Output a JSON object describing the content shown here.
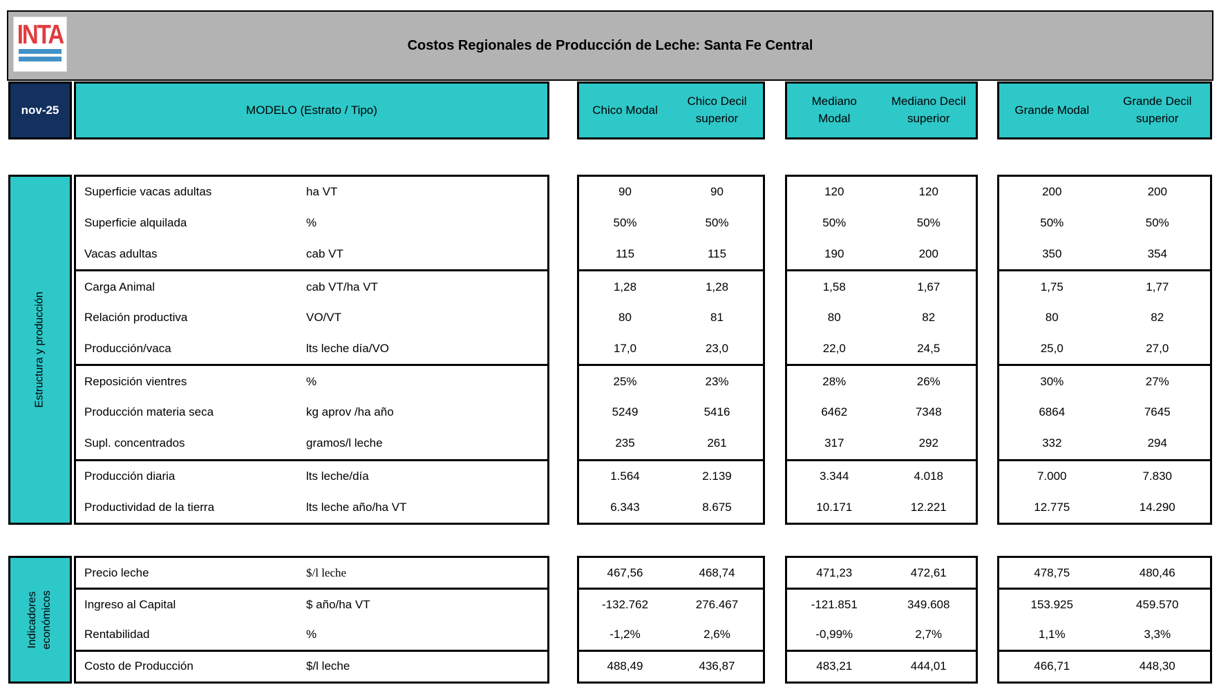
{
  "header": {
    "logo_text": "INTA",
    "title": "Costos Regionales de Producción de Leche: Santa Fe Central",
    "date": "nov-25",
    "model_label": "MODELO (Estrato / Tipo)",
    "groups": [
      {
        "cols": [
          "Chico Modal",
          "Chico Decil superior"
        ]
      },
      {
        "cols": [
          "Mediano Modal",
          "Mediano Decil superior"
        ]
      },
      {
        "cols": [
          "Grande Modal",
          "Grande Decil superior"
        ]
      }
    ]
  },
  "colors": {
    "teal": "#2ec8c9",
    "navy": "#13305f",
    "title_bar_gray": "#b3b3b3",
    "logo_red": "#e23b3f",
    "logo_blue": "#4292c8"
  },
  "table1": {
    "side_label": "Estructura y producción",
    "groups": [
      {
        "rows": [
          {
            "label": "Superficie vacas adultas",
            "unit": "ha VT",
            "values": [
              "90",
              "90",
              "120",
              "120",
              "200",
              "200"
            ]
          },
          {
            "label": "Superficie alquilada",
            "unit": "%",
            "values": [
              "50%",
              "50%",
              "50%",
              "50%",
              "50%",
              "50%"
            ]
          },
          {
            "label": "Vacas adultas",
            "unit": "cab VT",
            "values": [
              "115",
              "115",
              "190",
              "200",
              "350",
              "354"
            ]
          }
        ]
      },
      {
        "rows": [
          {
            "label": "Carga Animal",
            "unit": "cab VT/ha VT",
            "values": [
              "1,28",
              "1,28",
              "1,58",
              "1,67",
              "1,75",
              "1,77"
            ]
          },
          {
            "label": "Relación productiva",
            "unit": "VO/VT",
            "values": [
              "80",
              "81",
              "80",
              "82",
              "80",
              "82"
            ]
          },
          {
            "label": "Producción/vaca",
            "unit": "lts leche día/VO",
            "values": [
              "17,0",
              "23,0",
              "22,0",
              "24,5",
              "25,0",
              "27,0"
            ]
          }
        ]
      },
      {
        "rows": [
          {
            "label": "Reposición vientres",
            "unit": "%",
            "values": [
              "25%",
              "23%",
              "28%",
              "26%",
              "30%",
              "27%"
            ]
          },
          {
            "label": "Producción materia seca",
            "unit": "kg aprov /ha año",
            "values": [
              "5249",
              "5416",
              "6462",
              "7348",
              "6864",
              "7645"
            ]
          },
          {
            "label": "Supl. concentrados",
            "unit": "gramos/l leche",
            "values": [
              "235",
              "261",
              "317",
              "292",
              "332",
              "294"
            ]
          }
        ]
      },
      {
        "rows": [
          {
            "label": "Producción diaria",
            "unit": "lts leche/día",
            "values": [
              "1.564",
              "2.139",
              "3.344",
              "4.018",
              "7.000",
              "7.830"
            ]
          },
          {
            "label": "Productividad de la tierra",
            "unit": "lts leche año/ha VT",
            "values": [
              "6.343",
              "8.675",
              "10.171",
              "12.221",
              "12.775",
              "14.290"
            ]
          }
        ]
      }
    ]
  },
  "table2": {
    "side_label": "Indicadores económicos",
    "groups": [
      {
        "rows": [
          {
            "label": "Precio leche",
            "unit": "$/l leche",
            "values": [
              "467,56",
              "468,74",
              "471,23",
              "472,61",
              "478,75",
              "480,46"
            ]
          }
        ]
      },
      {
        "rows": [
          {
            "label": "Ingreso al Capital",
            "unit": "$ año/ha VT",
            "values": [
              "-132.762",
              "276.467",
              "-121.851",
              "349.608",
              "153.925",
              "459.570"
            ]
          },
          {
            "label": "Rentabilidad",
            "unit": "%",
            "values": [
              "-1,2%",
              "2,6%",
              "-0,99%",
              "2,7%",
              "1,1%",
              "3,3%"
            ]
          }
        ]
      },
      {
        "rows": [
          {
            "label": "Costo de Producción",
            "unit": "$/l leche",
            "values": [
              "488,49",
              "436,87",
              "483,21",
              "444,01",
              "466,71",
              "448,30"
            ]
          }
        ]
      }
    ]
  }
}
